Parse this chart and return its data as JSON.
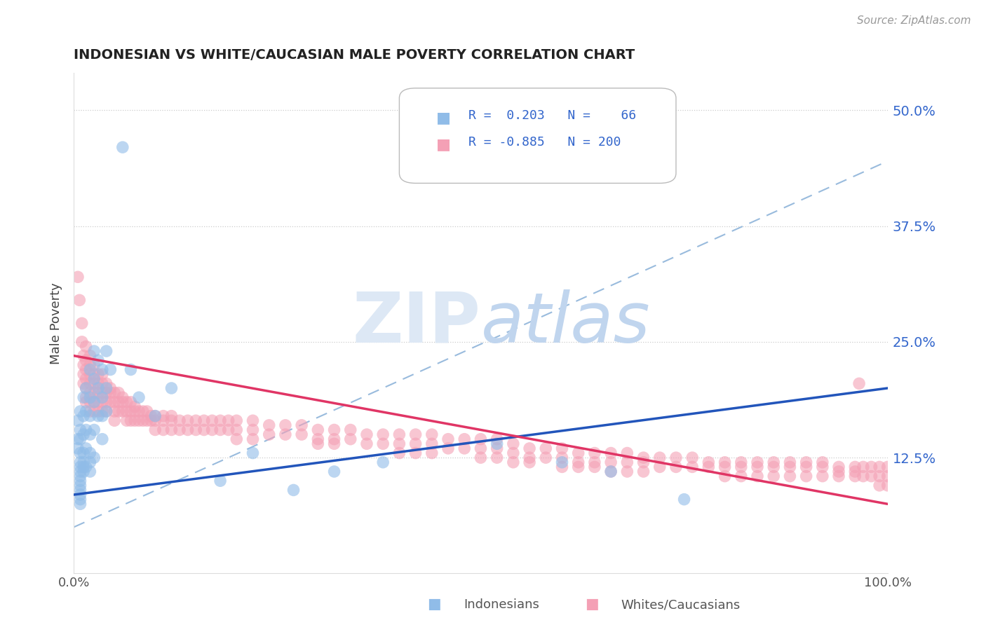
{
  "title": "INDONESIAN VS WHITE/CAUCASIAN MALE POVERTY CORRELATION CHART",
  "source_text": "Source: ZipAtlas.com",
  "ylabel": "Male Poverty",
  "xlim": [
    0.0,
    1.0
  ],
  "ylim": [
    0.0,
    0.54
  ],
  "xtick_labels": [
    "0.0%",
    "100.0%"
  ],
  "xtick_positions": [
    0.0,
    1.0
  ],
  "ytick_labels": [
    "12.5%",
    "25.0%",
    "37.5%",
    "50.0%"
  ],
  "ytick_positions": [
    0.125,
    0.25,
    0.375,
    0.5
  ],
  "blue_color": "#90bce8",
  "pink_color": "#f4a0b5",
  "blue_line_color": "#2255bb",
  "pink_line_color": "#e03565",
  "dash_line_color": "#99bbdd",
  "legend_text_color": "#3366cc",
  "watermark_zip_color": "#dde8f5",
  "watermark_atlas_color": "#c0d5ee",
  "background_color": "#ffffff",
  "indonesians_label": "Indonesians",
  "caucasians_label": "Whites/Caucasians",
  "indonesian_points": [
    [
      0.005,
      0.165
    ],
    [
      0.005,
      0.145
    ],
    [
      0.005,
      0.135
    ],
    [
      0.008,
      0.175
    ],
    [
      0.008,
      0.155
    ],
    [
      0.008,
      0.145
    ],
    [
      0.008,
      0.13
    ],
    [
      0.008,
      0.12
    ],
    [
      0.008,
      0.115
    ],
    [
      0.008,
      0.11
    ],
    [
      0.008,
      0.105
    ],
    [
      0.008,
      0.1
    ],
    [
      0.008,
      0.095
    ],
    [
      0.008,
      0.09
    ],
    [
      0.008,
      0.085
    ],
    [
      0.008,
      0.08
    ],
    [
      0.008,
      0.075
    ],
    [
      0.012,
      0.19
    ],
    [
      0.012,
      0.17
    ],
    [
      0.012,
      0.15
    ],
    [
      0.012,
      0.13
    ],
    [
      0.012,
      0.12
    ],
    [
      0.012,
      0.115
    ],
    [
      0.012,
      0.11
    ],
    [
      0.015,
      0.2
    ],
    [
      0.015,
      0.175
    ],
    [
      0.015,
      0.155
    ],
    [
      0.015,
      0.135
    ],
    [
      0.015,
      0.115
    ],
    [
      0.02,
      0.22
    ],
    [
      0.02,
      0.19
    ],
    [
      0.02,
      0.17
    ],
    [
      0.02,
      0.15
    ],
    [
      0.02,
      0.13
    ],
    [
      0.02,
      0.12
    ],
    [
      0.02,
      0.11
    ],
    [
      0.025,
      0.24
    ],
    [
      0.025,
      0.21
    ],
    [
      0.025,
      0.185
    ],
    [
      0.025,
      0.155
    ],
    [
      0.025,
      0.125
    ],
    [
      0.03,
      0.23
    ],
    [
      0.03,
      0.2
    ],
    [
      0.03,
      0.17
    ],
    [
      0.035,
      0.22
    ],
    [
      0.035,
      0.19
    ],
    [
      0.035,
      0.17
    ],
    [
      0.035,
      0.145
    ],
    [
      0.04,
      0.24
    ],
    [
      0.04,
      0.2
    ],
    [
      0.04,
      0.175
    ],
    [
      0.045,
      0.22
    ],
    [
      0.06,
      0.46
    ],
    [
      0.07,
      0.22
    ],
    [
      0.08,
      0.19
    ],
    [
      0.1,
      0.17
    ],
    [
      0.12,
      0.2
    ],
    [
      0.18,
      0.1
    ],
    [
      0.22,
      0.13
    ],
    [
      0.27,
      0.09
    ],
    [
      0.32,
      0.11
    ],
    [
      0.38,
      0.12
    ],
    [
      0.52,
      0.14
    ],
    [
      0.6,
      0.12
    ],
    [
      0.66,
      0.11
    ],
    [
      0.75,
      0.08
    ]
  ],
  "caucasian_points": [
    [
      0.005,
      0.32
    ],
    [
      0.007,
      0.295
    ],
    [
      0.01,
      0.27
    ],
    [
      0.01,
      0.25
    ],
    [
      0.012,
      0.235
    ],
    [
      0.012,
      0.225
    ],
    [
      0.012,
      0.215
    ],
    [
      0.012,
      0.205
    ],
    [
      0.015,
      0.245
    ],
    [
      0.015,
      0.23
    ],
    [
      0.015,
      0.22
    ],
    [
      0.015,
      0.21
    ],
    [
      0.015,
      0.2
    ],
    [
      0.015,
      0.19
    ],
    [
      0.015,
      0.185
    ],
    [
      0.02,
      0.235
    ],
    [
      0.02,
      0.225
    ],
    [
      0.02,
      0.215
    ],
    [
      0.02,
      0.205
    ],
    [
      0.02,
      0.195
    ],
    [
      0.02,
      0.185
    ],
    [
      0.02,
      0.175
    ],
    [
      0.025,
      0.225
    ],
    [
      0.025,
      0.215
    ],
    [
      0.025,
      0.205
    ],
    [
      0.025,
      0.195
    ],
    [
      0.025,
      0.185
    ],
    [
      0.025,
      0.175
    ],
    [
      0.03,
      0.215
    ],
    [
      0.03,
      0.205
    ],
    [
      0.03,
      0.195
    ],
    [
      0.03,
      0.185
    ],
    [
      0.03,
      0.175
    ],
    [
      0.035,
      0.215
    ],
    [
      0.035,
      0.205
    ],
    [
      0.035,
      0.195
    ],
    [
      0.035,
      0.185
    ],
    [
      0.035,
      0.175
    ],
    [
      0.04,
      0.205
    ],
    [
      0.04,
      0.195
    ],
    [
      0.04,
      0.185
    ],
    [
      0.04,
      0.175
    ],
    [
      0.045,
      0.2
    ],
    [
      0.045,
      0.195
    ],
    [
      0.045,
      0.185
    ],
    [
      0.05,
      0.195
    ],
    [
      0.05,
      0.185
    ],
    [
      0.05,
      0.175
    ],
    [
      0.05,
      0.165
    ],
    [
      0.055,
      0.195
    ],
    [
      0.055,
      0.185
    ],
    [
      0.055,
      0.175
    ],
    [
      0.06,
      0.19
    ],
    [
      0.06,
      0.185
    ],
    [
      0.06,
      0.175
    ],
    [
      0.065,
      0.185
    ],
    [
      0.065,
      0.175
    ],
    [
      0.065,
      0.165
    ],
    [
      0.07,
      0.185
    ],
    [
      0.07,
      0.175
    ],
    [
      0.07,
      0.165
    ],
    [
      0.075,
      0.18
    ],
    [
      0.075,
      0.175
    ],
    [
      0.075,
      0.165
    ],
    [
      0.08,
      0.175
    ],
    [
      0.08,
      0.165
    ],
    [
      0.085,
      0.175
    ],
    [
      0.085,
      0.165
    ],
    [
      0.09,
      0.175
    ],
    [
      0.09,
      0.165
    ],
    [
      0.095,
      0.17
    ],
    [
      0.095,
      0.165
    ],
    [
      0.1,
      0.17
    ],
    [
      0.1,
      0.165
    ],
    [
      0.1,
      0.155
    ],
    [
      0.11,
      0.17
    ],
    [
      0.11,
      0.165
    ],
    [
      0.11,
      0.155
    ],
    [
      0.12,
      0.17
    ],
    [
      0.12,
      0.165
    ],
    [
      0.12,
      0.155
    ],
    [
      0.13,
      0.165
    ],
    [
      0.13,
      0.155
    ],
    [
      0.14,
      0.165
    ],
    [
      0.14,
      0.155
    ],
    [
      0.15,
      0.165
    ],
    [
      0.15,
      0.155
    ],
    [
      0.16,
      0.165
    ],
    [
      0.16,
      0.155
    ],
    [
      0.17,
      0.165
    ],
    [
      0.17,
      0.155
    ],
    [
      0.18,
      0.165
    ],
    [
      0.18,
      0.155
    ],
    [
      0.19,
      0.165
    ],
    [
      0.19,
      0.155
    ],
    [
      0.2,
      0.165
    ],
    [
      0.2,
      0.155
    ],
    [
      0.2,
      0.145
    ],
    [
      0.22,
      0.165
    ],
    [
      0.22,
      0.155
    ],
    [
      0.22,
      0.145
    ],
    [
      0.24,
      0.16
    ],
    [
      0.24,
      0.15
    ],
    [
      0.26,
      0.16
    ],
    [
      0.26,
      0.15
    ],
    [
      0.28,
      0.16
    ],
    [
      0.28,
      0.15
    ],
    [
      0.3,
      0.155
    ],
    [
      0.3,
      0.145
    ],
    [
      0.3,
      0.14
    ],
    [
      0.32,
      0.155
    ],
    [
      0.32,
      0.145
    ],
    [
      0.32,
      0.14
    ],
    [
      0.34,
      0.155
    ],
    [
      0.34,
      0.145
    ],
    [
      0.36,
      0.15
    ],
    [
      0.36,
      0.14
    ],
    [
      0.38,
      0.15
    ],
    [
      0.38,
      0.14
    ],
    [
      0.4,
      0.15
    ],
    [
      0.4,
      0.14
    ],
    [
      0.4,
      0.13
    ],
    [
      0.42,
      0.15
    ],
    [
      0.42,
      0.14
    ],
    [
      0.42,
      0.13
    ],
    [
      0.44,
      0.15
    ],
    [
      0.44,
      0.14
    ],
    [
      0.44,
      0.13
    ],
    [
      0.46,
      0.145
    ],
    [
      0.46,
      0.135
    ],
    [
      0.48,
      0.145
    ],
    [
      0.48,
      0.135
    ],
    [
      0.5,
      0.145
    ],
    [
      0.5,
      0.135
    ],
    [
      0.5,
      0.125
    ],
    [
      0.52,
      0.145
    ],
    [
      0.52,
      0.135
    ],
    [
      0.52,
      0.125
    ],
    [
      0.54,
      0.14
    ],
    [
      0.54,
      0.13
    ],
    [
      0.54,
      0.12
    ],
    [
      0.56,
      0.135
    ],
    [
      0.56,
      0.125
    ],
    [
      0.56,
      0.12
    ],
    [
      0.58,
      0.135
    ],
    [
      0.58,
      0.125
    ],
    [
      0.6,
      0.135
    ],
    [
      0.6,
      0.125
    ],
    [
      0.6,
      0.115
    ],
    [
      0.62,
      0.13
    ],
    [
      0.62,
      0.12
    ],
    [
      0.62,
      0.115
    ],
    [
      0.64,
      0.13
    ],
    [
      0.64,
      0.12
    ],
    [
      0.64,
      0.115
    ],
    [
      0.66,
      0.13
    ],
    [
      0.66,
      0.12
    ],
    [
      0.66,
      0.11
    ],
    [
      0.68,
      0.13
    ],
    [
      0.68,
      0.12
    ],
    [
      0.68,
      0.11
    ],
    [
      0.7,
      0.125
    ],
    [
      0.7,
      0.12
    ],
    [
      0.7,
      0.11
    ],
    [
      0.72,
      0.125
    ],
    [
      0.72,
      0.115
    ],
    [
      0.74,
      0.125
    ],
    [
      0.74,
      0.115
    ],
    [
      0.76,
      0.125
    ],
    [
      0.76,
      0.115
    ],
    [
      0.78,
      0.12
    ],
    [
      0.78,
      0.115
    ],
    [
      0.8,
      0.12
    ],
    [
      0.8,
      0.115
    ],
    [
      0.8,
      0.105
    ],
    [
      0.82,
      0.12
    ],
    [
      0.82,
      0.115
    ],
    [
      0.82,
      0.105
    ],
    [
      0.84,
      0.12
    ],
    [
      0.84,
      0.115
    ],
    [
      0.84,
      0.105
    ],
    [
      0.86,
      0.12
    ],
    [
      0.86,
      0.115
    ],
    [
      0.86,
      0.105
    ],
    [
      0.88,
      0.12
    ],
    [
      0.88,
      0.115
    ],
    [
      0.88,
      0.105
    ],
    [
      0.9,
      0.12
    ],
    [
      0.9,
      0.115
    ],
    [
      0.9,
      0.105
    ],
    [
      0.92,
      0.12
    ],
    [
      0.92,
      0.115
    ],
    [
      0.92,
      0.105
    ],
    [
      0.94,
      0.115
    ],
    [
      0.94,
      0.11
    ],
    [
      0.94,
      0.105
    ],
    [
      0.96,
      0.115
    ],
    [
      0.96,
      0.11
    ],
    [
      0.96,
      0.105
    ],
    [
      0.965,
      0.205
    ],
    [
      0.97,
      0.115
    ],
    [
      0.97,
      0.105
    ],
    [
      0.98,
      0.115
    ],
    [
      0.98,
      0.105
    ],
    [
      0.99,
      0.115
    ],
    [
      0.99,
      0.105
    ],
    [
      0.99,
      0.095
    ],
    [
      1.0,
      0.115
    ],
    [
      1.0,
      0.105
    ],
    [
      1.0,
      0.095
    ]
  ],
  "blue_trendline": [
    0.0,
    0.085,
    1.0,
    0.2
  ],
  "pink_trendline": [
    0.0,
    0.235,
    1.0,
    0.075
  ],
  "dash_trendline": [
    0.0,
    0.05,
    1.0,
    0.445
  ]
}
